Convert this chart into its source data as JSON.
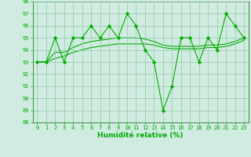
{
  "x": [
    0,
    1,
    2,
    3,
    4,
    5,
    6,
    7,
    8,
    9,
    10,
    11,
    12,
    13,
    14,
    15,
    16,
    17,
    18,
    19,
    20,
    21,
    22,
    23
  ],
  "y_main": [
    93,
    93,
    95,
    93,
    95,
    95,
    96,
    95,
    96,
    95,
    97,
    96,
    94,
    93,
    89,
    91,
    95,
    95,
    93,
    95,
    94,
    97,
    96,
    95
  ],
  "y_trend1": [
    93,
    93.0,
    93.8,
    93.8,
    94.2,
    94.5,
    94.7,
    94.8,
    94.9,
    95.0,
    95.0,
    95.0,
    94.9,
    94.7,
    94.4,
    94.3,
    94.3,
    94.3,
    94.3,
    94.4,
    94.4,
    94.5,
    94.7,
    95.0
  ],
  "y_trend2": [
    93,
    93.0,
    93.3,
    93.5,
    93.8,
    94.0,
    94.2,
    94.3,
    94.4,
    94.5,
    94.5,
    94.5,
    94.5,
    94.4,
    94.2,
    94.1,
    94.1,
    94.1,
    94.1,
    94.2,
    94.2,
    94.3,
    94.5,
    94.8
  ],
  "line_color": "#00aa00",
  "bg_color": "#d0ece0",
  "grid_color": "#90c8a8",
  "ylim": [
    88,
    98
  ],
  "xlim": [
    -0.5,
    23.5
  ],
  "yticks": [
    88,
    89,
    90,
    91,
    92,
    93,
    94,
    95,
    96,
    97,
    98
  ],
  "xticks": [
    0,
    1,
    2,
    3,
    4,
    5,
    6,
    7,
    8,
    9,
    10,
    11,
    12,
    13,
    14,
    15,
    16,
    17,
    18,
    19,
    20,
    21,
    22,
    23
  ],
  "xlabel": "Humidité relative (%)",
  "marker": "D",
  "marker_size": 2.2,
  "tick_fontsize": 5.0,
  "xlabel_fontsize": 6.5
}
